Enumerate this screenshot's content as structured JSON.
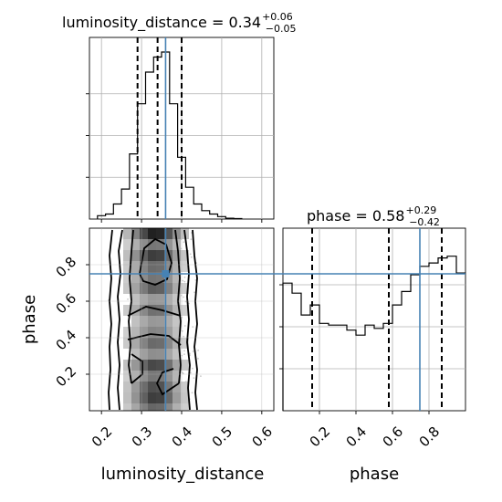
{
  "chart_data": {
    "type": "corner",
    "parameters": [
      "luminosity_distance",
      "phase"
    ],
    "truths": {
      "luminosity_distance": 0.36,
      "phase": 0.75
    },
    "accent_color": "#4682b4",
    "panels": [
      {
        "panel": "histogram-luminosity-distance",
        "title_text": "luminosity_distance = 0.34",
        "title_plus": "+0.06",
        "title_minus": "−0.05",
        "type": "step-histogram",
        "xlim": [
          0.17,
          0.63
        ],
        "bin_edges": [
          0.19,
          0.21,
          0.23,
          0.25,
          0.27,
          0.29,
          0.31,
          0.33,
          0.35,
          0.37,
          0.39,
          0.41,
          0.43,
          0.45,
          0.47,
          0.49,
          0.51,
          0.53,
          0.55
        ],
        "counts": [
          0.02,
          0.03,
          0.09,
          0.18,
          0.39,
          0.69,
          0.88,
          0.97,
          1.0,
          0.69,
          0.37,
          0.19,
          0.09,
          0.05,
          0.03,
          0.015,
          0.005,
          0.003
        ],
        "quantile_lines": [
          0.29,
          0.34,
          0.4
        ],
        "truth_line": 0.36,
        "grid": true
      },
      {
        "panel": "histogram-phase",
        "title_text": "phase = 0.58",
        "title_plus": "+0.29",
        "title_minus": "−0.42",
        "type": "step-histogram",
        "xlim": [
          0.0,
          1.0
        ],
        "bin_edges": [
          0.0,
          0.05,
          0.1,
          0.15,
          0.2,
          0.25,
          0.3,
          0.35,
          0.4,
          0.45,
          0.5,
          0.55,
          0.6,
          0.65,
          0.7,
          0.75,
          0.8,
          0.85,
          0.9,
          0.95,
          1.0
        ],
        "counts": [
          0.76,
          0.7,
          0.57,
          0.63,
          0.52,
          0.51,
          0.51,
          0.48,
          0.45,
          0.51,
          0.49,
          0.52,
          0.63,
          0.71,
          0.81,
          0.86,
          0.88,
          0.91,
          0.92,
          0.82
        ],
        "quantile_lines": [
          0.16,
          0.58,
          0.87
        ],
        "truth_line": 0.75,
        "x_ticks": [
          "0.2",
          "0.4",
          "0.6",
          "0.8"
        ],
        "x_tick_values": [
          0.2,
          0.4,
          0.6,
          0.8
        ],
        "xlabel": "phase",
        "grid": true
      },
      {
        "panel": "2d-density",
        "type": "2d-density-contour",
        "xlim": [
          0.17,
          0.63
        ],
        "ylim": [
          0.0,
          1.0
        ],
        "x_ticks": [
          "0.2",
          "0.3",
          "0.4",
          "0.5",
          "0.6"
        ],
        "x_tick_values": [
          0.2,
          0.3,
          0.4,
          0.5,
          0.6
        ],
        "y_ticks": [
          "0.2",
          "0.4",
          "0.6",
          "0.8"
        ],
        "y_tick_values": [
          0.2,
          0.4,
          0.6,
          0.8
        ],
        "xlabel": "luminosity_distance",
        "ylabel": "phase",
        "truth_point": [
          0.36,
          0.75
        ],
        "grid": true
      }
    ]
  }
}
